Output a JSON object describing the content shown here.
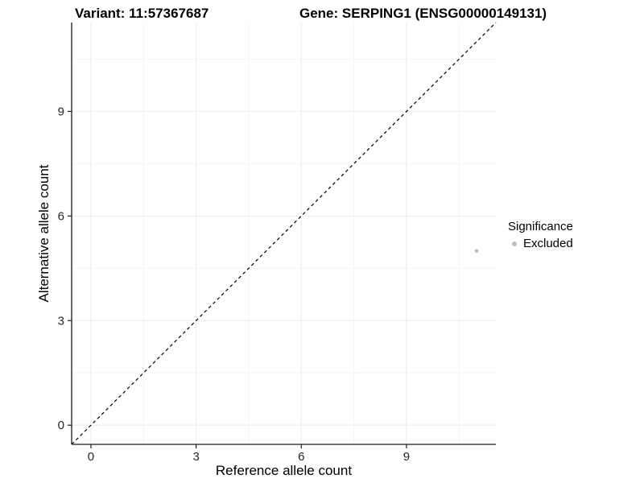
{
  "chart_data": {
    "type": "scatter",
    "title_left": "Variant: 11:57367687",
    "title_right": "Gene: SERPING1 (ENSG00000149131)",
    "xlabel": "Reference allele count",
    "ylabel": "Alternative allele count",
    "xlim": [
      -0.55,
      11.55
    ],
    "ylim": [
      -0.55,
      11.55
    ],
    "x_ticks": [
      0,
      3,
      6,
      9
    ],
    "y_ticks": [
      0,
      3,
      6,
      9
    ],
    "x_minor_ticks": [
      1.5,
      4.5,
      7.5,
      10.5
    ],
    "y_minor_ticks": [
      1.5,
      4.5,
      7.5,
      10.5
    ],
    "grid": true,
    "identity_line": {
      "style": "dashed",
      "from": [
        -0.55,
        -0.55
      ],
      "to": [
        11.55,
        11.55
      ],
      "color": "#000000"
    },
    "series": [
      {
        "name": "Excluded",
        "color": "#bebebe",
        "points": [
          {
            "x": 11,
            "y": 5
          }
        ]
      }
    ],
    "legend": {
      "title": "Significance",
      "position": "right",
      "items": [
        {
          "label": "Excluded",
          "color": "#bebebe"
        }
      ]
    }
  },
  "colors": {
    "background": "#ffffff",
    "axis_line": "#1a1a1a",
    "tick_mark": "#1a1a1a",
    "tick_label": "#262626",
    "grid_major": "#ebebeb",
    "grid_minor": "#f5f5f5",
    "point": "#bebebe",
    "dashed_line": "#000000"
  }
}
